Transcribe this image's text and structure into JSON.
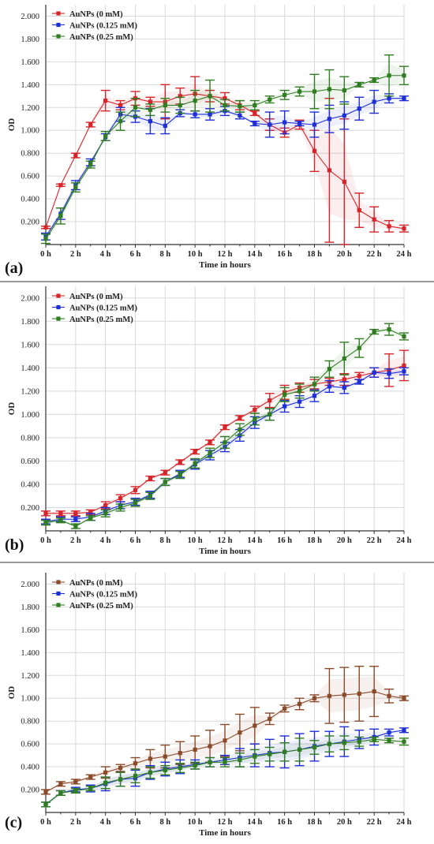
{
  "figure": {
    "colors": {
      "red": "#d6242a",
      "blue": "#1f2fd8",
      "green": "#2f7d21",
      "brown": "#8b4a2a",
      "grid": "#d9d9d9",
      "axis": "#333333",
      "separator": "#999999"
    }
  },
  "chart_data": [
    {
      "type": "line",
      "panel_label": "(a)",
      "xlabel": "Time in hours",
      "ylabel": "OD",
      "xlim": [
        0,
        24
      ],
      "ylim": [
        0,
        2.1
      ],
      "x_ticks": [
        "0 h",
        "2 h",
        "4 h",
        "6 h",
        "8 h",
        "10 h",
        "12 h",
        "14 h",
        "16 h",
        "18 h",
        "20 h",
        "22 h",
        "24 h"
      ],
      "y_ticks": [
        "0.200",
        "0.400",
        "0.600",
        "0.800",
        "1.000",
        "1.200",
        "1.400",
        "1.600",
        "1.800",
        "2.000"
      ],
      "grid": true,
      "legend_position": "top-left",
      "x": [
        0,
        1,
        2,
        3,
        4,
        5,
        6,
        7,
        8,
        9,
        10,
        11,
        12,
        13,
        14,
        15,
        16,
        17,
        18,
        19,
        20,
        21,
        22,
        23,
        24
      ],
      "series": [
        {
          "name": "AuNPs (0 mM)",
          "color": "red",
          "values": [
            0.15,
            0.52,
            0.78,
            1.05,
            1.26,
            1.22,
            1.28,
            1.25,
            1.25,
            1.3,
            1.32,
            1.3,
            1.28,
            1.22,
            1.15,
            1.05,
            0.98,
            1.05,
            0.82,
            0.65,
            0.55,
            0.3,
            0.22,
            0.16,
            0.14
          ],
          "errors": [
            0.01,
            0.01,
            0.02,
            0.02,
            0.09,
            0.04,
            0.06,
            0.04,
            0.15,
            0.07,
            0.15,
            0.05,
            0.05,
            0.04,
            0.02,
            0.05,
            0.04,
            0.04,
            0.18,
            0.63,
            0.55,
            0.15,
            0.11,
            0.05,
            0.03
          ]
        },
        {
          "name": "AuNPs (0.125 mM)",
          "color": "blue",
          "values": [
            0.07,
            0.27,
            0.52,
            0.72,
            0.94,
            1.14,
            1.12,
            1.08,
            1.04,
            1.15,
            1.14,
            1.14,
            1.17,
            1.13,
            1.06,
            1.05,
            1.07,
            1.06,
            1.05,
            1.1,
            1.13,
            1.19,
            1.25,
            1.28,
            1.28
          ],
          "errors": [
            0.03,
            0.05,
            0.04,
            0.03,
            0.03,
            0.06,
            0.05,
            0.11,
            0.07,
            0.03,
            0.03,
            0.05,
            0.04,
            0.03,
            0.02,
            0.11,
            0.1,
            0.02,
            0.11,
            0.12,
            0.12,
            0.1,
            0.1,
            0.04,
            0.02
          ]
        },
        {
          "name": "AuNPs (0.25 mM)",
          "color": "green",
          "values": [
            0.05,
            0.25,
            0.5,
            0.7,
            0.95,
            1.08,
            1.2,
            1.18,
            1.22,
            1.22,
            1.26,
            1.3,
            1.22,
            1.21,
            1.22,
            1.27,
            1.31,
            1.34,
            1.34,
            1.36,
            1.35,
            1.4,
            1.44,
            1.48,
            1.48
          ],
          "errors": [
            0.04,
            0.07,
            0.04,
            0.03,
            0.04,
            0.08,
            0.08,
            0.05,
            0.06,
            0.07,
            0.09,
            0.14,
            0.05,
            0.05,
            0.04,
            0.03,
            0.04,
            0.04,
            0.15,
            0.17,
            0.12,
            0.02,
            0.02,
            0.18,
            0.08
          ]
        }
      ]
    },
    {
      "type": "line",
      "panel_label": "(b)",
      "xlabel": "Time in hours",
      "ylabel": "OD",
      "xlim": [
        0,
        24
      ],
      "ylim": [
        0,
        2.1
      ],
      "x_ticks": [
        "0 h",
        "2 h",
        "4 h",
        "6 h",
        "8 h",
        "10 h",
        "12 h",
        "14 h",
        "16 h",
        "18 h",
        "20 h",
        "22 h",
        "24 h"
      ],
      "y_ticks": [
        "0.200",
        "0.400",
        "0.600",
        "0.800",
        "1.000",
        "1.200",
        "1.400",
        "1.600",
        "1.800",
        "2.000"
      ],
      "grid": true,
      "legend_position": "top-left",
      "x": [
        0,
        1,
        2,
        3,
        4,
        5,
        6,
        7,
        8,
        9,
        10,
        11,
        12,
        13,
        14,
        15,
        16,
        17,
        18,
        19,
        20,
        21,
        22,
        23,
        24
      ],
      "series": [
        {
          "name": "AuNPs (0 mM)",
          "color": "red",
          "values": [
            0.15,
            0.15,
            0.15,
            0.16,
            0.22,
            0.28,
            0.35,
            0.45,
            0.5,
            0.59,
            0.68,
            0.76,
            0.89,
            0.97,
            1.04,
            1.12,
            1.19,
            1.23,
            1.26,
            1.28,
            1.3,
            1.33,
            1.36,
            1.38,
            1.42
          ],
          "errors": [
            0.02,
            0.02,
            0.02,
            0.02,
            0.03,
            0.03,
            0.03,
            0.02,
            0.02,
            0.02,
            0.02,
            0.02,
            0.02,
            0.02,
            0.03,
            0.06,
            0.06,
            0.04,
            0.04,
            0.03,
            0.05,
            0.03,
            0.04,
            0.14,
            0.13
          ]
        },
        {
          "name": "AuNPs (0.125 mM)",
          "color": "blue",
          "values": [
            0.08,
            0.1,
            0.1,
            0.12,
            0.17,
            0.22,
            0.25,
            0.31,
            0.42,
            0.49,
            0.57,
            0.65,
            0.72,
            0.82,
            0.93,
            1.0,
            1.07,
            1.11,
            1.16,
            1.24,
            1.23,
            1.28,
            1.36,
            1.35,
            1.37
          ],
          "errors": [
            0.02,
            0.02,
            0.02,
            0.03,
            0.03,
            0.03,
            0.03,
            0.03,
            0.03,
            0.03,
            0.04,
            0.04,
            0.04,
            0.05,
            0.05,
            0.05,
            0.05,
            0.05,
            0.05,
            0.05,
            0.05,
            0.02,
            0.04,
            0.04,
            0.03
          ]
        },
        {
          "name": "AuNPs (0.25 mM)",
          "color": "green",
          "values": [
            0.07,
            0.09,
            0.04,
            0.11,
            0.15,
            0.2,
            0.24,
            0.3,
            0.42,
            0.48,
            0.58,
            0.67,
            0.76,
            0.87,
            0.96,
            1.0,
            1.17,
            1.2,
            1.26,
            1.39,
            1.48,
            1.57,
            1.71,
            1.73,
            1.67
          ],
          "errors": [
            0.02,
            0.02,
            0.02,
            0.02,
            0.03,
            0.03,
            0.03,
            0.03,
            0.03,
            0.03,
            0.04,
            0.04,
            0.05,
            0.05,
            0.05,
            0.05,
            0.06,
            0.06,
            0.06,
            0.07,
            0.14,
            0.08,
            0.02,
            0.05,
            0.03
          ]
        }
      ]
    },
    {
      "type": "line",
      "panel_label": "(c)",
      "xlabel": "Time in hours",
      "ylabel": "OD",
      "xlim": [
        0,
        24
      ],
      "ylim": [
        0,
        2.1
      ],
      "x_ticks": [
        "0 h",
        "2 h",
        "4 h",
        "6 h",
        "8 h",
        "10 h",
        "12 h",
        "14 h",
        "16 h",
        "18 h",
        "20 h",
        "22 h",
        "24 h"
      ],
      "y_ticks": [
        "0.200",
        "0.400",
        "0.600",
        "0.800",
        "1.000",
        "1.200",
        "1.400",
        "1.600",
        "1.800",
        "2.000"
      ],
      "grid": true,
      "legend_position": "top-left",
      "x": [
        0,
        1,
        2,
        3,
        4,
        5,
        6,
        7,
        8,
        9,
        10,
        11,
        12,
        13,
        14,
        15,
        16,
        17,
        18,
        19,
        20,
        21,
        22,
        23,
        24
      ],
      "series": [
        {
          "name": "AuNPs (0 mM)",
          "color": "brown",
          "values": [
            0.18,
            0.25,
            0.27,
            0.31,
            0.35,
            0.39,
            0.43,
            0.47,
            0.49,
            0.52,
            0.55,
            0.58,
            0.63,
            0.7,
            0.76,
            0.82,
            0.91,
            0.95,
            1.0,
            1.02,
            1.03,
            1.04,
            1.06,
            1.02,
            1.0
          ],
          "errors": [
            0.02,
            0.02,
            0.02,
            0.02,
            0.05,
            0.03,
            0.05,
            0.08,
            0.1,
            0.1,
            0.12,
            0.14,
            0.14,
            0.16,
            0.16,
            0.05,
            0.03,
            0.05,
            0.03,
            0.24,
            0.24,
            0.24,
            0.22,
            0.06,
            0.02
          ]
        },
        {
          "name": "AuNPs (0.125 mM)",
          "color": "blue",
          "values": [
            0.07,
            0.17,
            0.2,
            0.21,
            0.25,
            0.29,
            0.3,
            0.35,
            0.38,
            0.4,
            0.42,
            0.44,
            0.46,
            0.48,
            0.5,
            0.52,
            0.53,
            0.55,
            0.58,
            0.6,
            0.62,
            0.64,
            0.66,
            0.7,
            0.72
          ],
          "errors": [
            0.02,
            0.02,
            0.02,
            0.03,
            0.06,
            0.06,
            0.07,
            0.06,
            0.06,
            0.06,
            0.04,
            0.04,
            0.04,
            0.08,
            0.1,
            0.12,
            0.14,
            0.14,
            0.13,
            0.11,
            0.13,
            0.08,
            0.07,
            0.03,
            0.02
          ]
        },
        {
          "name": "AuNPs (0.25 mM)",
          "color": "green",
          "values": [
            0.07,
            0.17,
            0.19,
            0.21,
            0.26,
            0.29,
            0.32,
            0.35,
            0.37,
            0.39,
            0.41,
            0.44,
            0.44,
            0.46,
            0.49,
            0.51,
            0.53,
            0.55,
            0.57,
            0.6,
            0.61,
            0.62,
            0.64,
            0.63,
            0.62
          ],
          "errors": [
            0.02,
            0.02,
            0.02,
            0.02,
            0.05,
            0.06,
            0.06,
            0.05,
            0.04,
            0.04,
            0.03,
            0.04,
            0.04,
            0.06,
            0.06,
            0.06,
            0.08,
            0.1,
            0.06,
            0.07,
            0.06,
            0.04,
            0.02,
            0.02,
            0.03
          ]
        }
      ]
    }
  ]
}
